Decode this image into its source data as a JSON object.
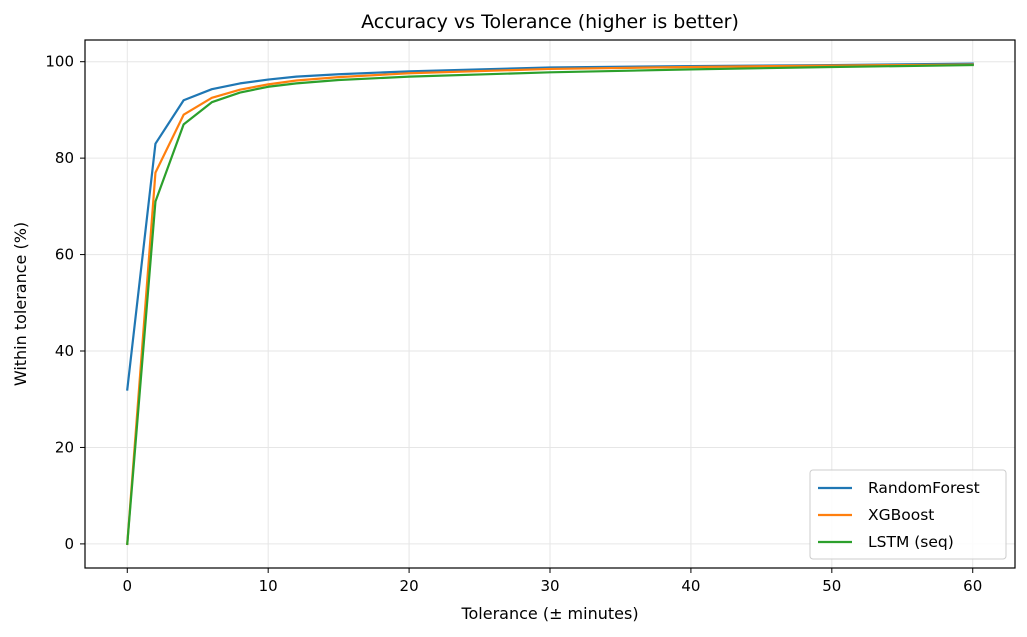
{
  "chart_data": {
    "type": "line",
    "title": "Accuracy vs Tolerance (higher is better)",
    "xlabel": "Tolerance (± minutes)",
    "ylabel": "Within tolerance (%)",
    "xlim": [
      -3,
      63
    ],
    "ylim": [
      -5,
      104.5
    ],
    "xticks": [
      0,
      10,
      20,
      30,
      40,
      50,
      60
    ],
    "yticks": [
      0,
      20,
      40,
      60,
      80,
      100
    ],
    "grid": true,
    "legend_position": "bottom-right",
    "x": [
      0,
      2,
      4,
      6,
      8,
      10,
      12,
      15,
      20,
      30,
      40,
      50,
      60
    ],
    "series": [
      {
        "name": "RandomForest",
        "color": "#1f77b4",
        "values": [
          32.0,
          83.0,
          92.0,
          94.3,
          95.5,
          96.3,
          96.9,
          97.4,
          98.0,
          98.8,
          99.1,
          99.3,
          99.6
        ]
      },
      {
        "name": "XGBoost",
        "color": "#ff7f0e",
        "values": [
          0.0,
          77.0,
          89.0,
          92.5,
          94.2,
          95.3,
          96.1,
          96.8,
          97.6,
          98.5,
          98.9,
          99.2,
          99.4
        ]
      },
      {
        "name": "LSTM (seq)",
        "color": "#2ca02c",
        "values": [
          0.0,
          71.0,
          87.0,
          91.6,
          93.6,
          94.8,
          95.5,
          96.2,
          96.9,
          97.8,
          98.4,
          98.9,
          99.3
        ]
      }
    ]
  }
}
